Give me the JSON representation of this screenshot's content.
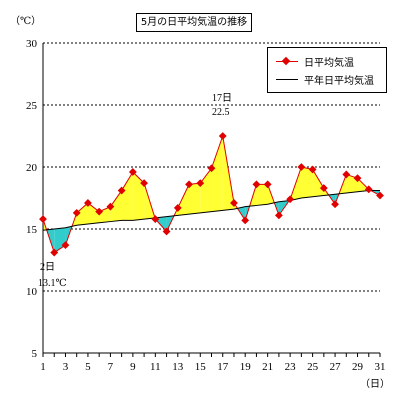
{
  "chart_data": {
    "type": "line",
    "title": "5月の日平均気温の推移",
    "ylabel": "（℃）",
    "xlabel": "（日）",
    "ylim": [
      5,
      30
    ],
    "yticks": [
      5,
      10,
      15,
      20,
      25,
      30
    ],
    "xticks": [
      1,
      3,
      5,
      7,
      9,
      11,
      13,
      15,
      17,
      19,
      21,
      23,
      25,
      27,
      29,
      31
    ],
    "grid": "horizontal dashed",
    "legend_position": "top-right",
    "x": [
      1,
      2,
      3,
      4,
      5,
      6,
      7,
      8,
      9,
      10,
      11,
      12,
      13,
      14,
      15,
      16,
      17,
      18,
      19,
      20,
      21,
      22,
      23,
      24,
      25,
      26,
      27,
      28,
      29,
      30,
      31
    ],
    "series": [
      {
        "name": "日平均気温",
        "color": "#e00000",
        "marker": "diamond",
        "values": [
          15.8,
          13.1,
          13.7,
          16.3,
          17.1,
          16.4,
          16.8,
          18.1,
          19.6,
          18.7,
          15.8,
          14.8,
          16.7,
          18.6,
          18.7,
          19.9,
          22.5,
          17.1,
          15.7,
          18.6,
          18.6,
          16.1,
          17.4,
          20.0,
          19.8,
          18.3,
          17.0,
          19.4,
          19.1,
          18.2,
          17.7
        ]
      },
      {
        "name": "平年日平均気温",
        "color": "#000000",
        "values": [
          14.9,
          15.0,
          15.1,
          15.3,
          15.4,
          15.5,
          15.6,
          15.7,
          15.7,
          15.8,
          15.9,
          16.0,
          16.1,
          16.2,
          16.3,
          16.4,
          16.5,
          16.6,
          16.8,
          16.9,
          17.0,
          17.2,
          17.3,
          17.5,
          17.6,
          17.7,
          17.8,
          17.9,
          18.0,
          18.1,
          18.1
        ]
      }
    ],
    "fill_above_color": "#ffff33",
    "fill_below_color": "#33cccc",
    "annotations": [
      {
        "day_label": "17日",
        "value_label": "22.5"
      },
      {
        "day_label": "2日",
        "value_label": "13.1℃"
      }
    ]
  }
}
